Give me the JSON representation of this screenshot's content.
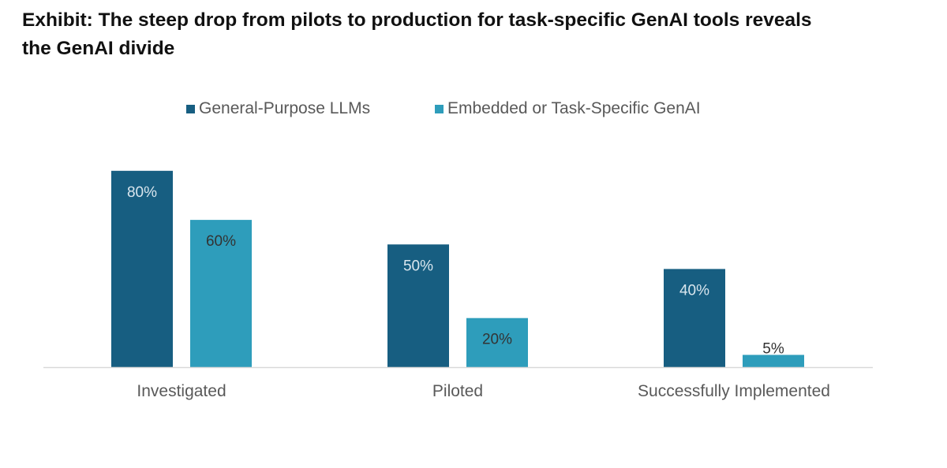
{
  "title": {
    "line1": "Exhibit: The steep drop from pilots to production for task-specific GenAI tools reveals",
    "line2": "the GenAI divide"
  },
  "legend": {
    "items": [
      {
        "label": "General-Purpose LLMs",
        "color": "#175e81"
      },
      {
        "label": "Embedded or Task-Specific GenAI",
        "color": "#2e9dbb"
      }
    ]
  },
  "chart_data": {
    "type": "bar",
    "title": "Exhibit: The steep drop from pilots to production for task-specific GenAI tools reveals the GenAI divide",
    "categories": [
      "Investigated",
      "Piloted",
      "Successfully Implemented"
    ],
    "series": [
      {
        "name": "General-Purpose LLMs",
        "values": [
          80,
          50,
          40
        ],
        "labels": [
          "80%",
          "50%",
          "40%"
        ],
        "color": "#175e81",
        "label_color": "#d9e6ee"
      },
      {
        "name": "Embedded or Task-Specific GenAI",
        "values": [
          60,
          20,
          5
        ],
        "labels": [
          "60%",
          "20%",
          "5%"
        ],
        "color": "#2e9dbb",
        "label_color": "#333333"
      }
    ],
    "xlabel": "",
    "ylabel": "",
    "ylim": [
      0,
      100
    ],
    "grid": false,
    "legend_position": "top",
    "axis_color": "#d9d9d9"
  }
}
